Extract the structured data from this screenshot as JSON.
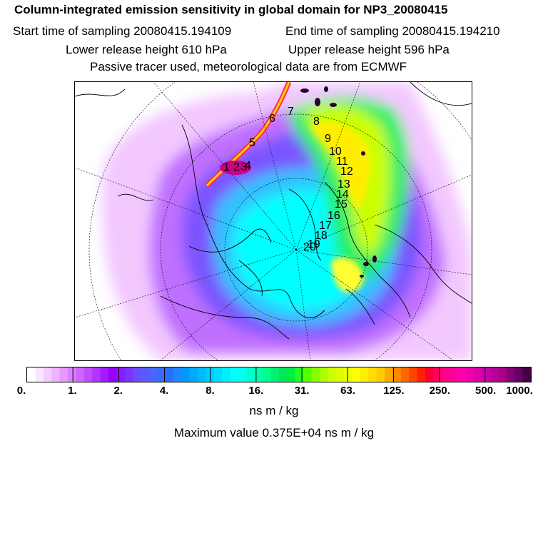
{
  "title": "Column-integrated emission sensitivity in global domain for NP3_20080415",
  "sampling": {
    "start": "Start time of sampling 20080415.194109",
    "end": "End time of sampling 20080415.194210"
  },
  "release": {
    "lower": "Lower release height  610 hPa",
    "upper": "Upper release height  596 hPa"
  },
  "tracer_note": "Passive tracer used, meteorological data are from ECMWF",
  "colorbar": {
    "ticks": [
      "0.",
      "1.",
      "2.",
      "4.",
      "8.",
      "16.",
      "31.",
      "63.",
      "125.",
      "250.",
      "500.",
      "1000."
    ],
    "colors": [
      "#ffffff",
      "#fbe6ff",
      "#f5ccff",
      "#efb3ff",
      "#e799ff",
      "#dd80ff",
      "#d066ff",
      "#c24dff",
      "#b333ff",
      "#a31aff",
      "#9900ff",
      "#8a1aff",
      "#7a33ff",
      "#6a4dff",
      "#5a5aff",
      "#4a66ff",
      "#3a6aff",
      "#2a6eff",
      "#1a88ff",
      "#0099ff",
      "#00aaff",
      "#00bbff",
      "#00ccff",
      "#00ddff",
      "#00eeff",
      "#00ffff",
      "#00ffee",
      "#00ffcc",
      "#00ffaa",
      "#00ff88",
      "#00f070",
      "#00e855",
      "#00ee44",
      "#22ff22",
      "#55ff00",
      "#88ff00",
      "#aaff00",
      "#ccff00",
      "#ddff00",
      "#eeff00",
      "#ffff00",
      "#ffee00",
      "#ffdd00",
      "#ffcc00",
      "#ffaa00",
      "#ff8800",
      "#ff6600",
      "#ff4400",
      "#ff2200",
      "#ff0033",
      "#ff0066",
      "#ff0088",
      "#ff0099",
      "#ff00aa",
      "#f000aa",
      "#e000aa",
      "#cc00aa",
      "#bb0099",
      "#aa0088",
      "#880077",
      "#660066",
      "#440044"
    ]
  },
  "units": "ns m / kg",
  "maximum": "Maximum value  0.375E+04 ns m / kg",
  "trajectory_labels": [
    "1",
    "2",
    "3",
    "4",
    "5",
    "6",
    "7",
    "8",
    "9",
    "10",
    "11",
    "12",
    "13",
    "14",
    "15",
    "16",
    "17",
    "18",
    "19",
    "20"
  ],
  "accent_colors": {
    "background": "#ffffff",
    "frame": "#000000"
  }
}
